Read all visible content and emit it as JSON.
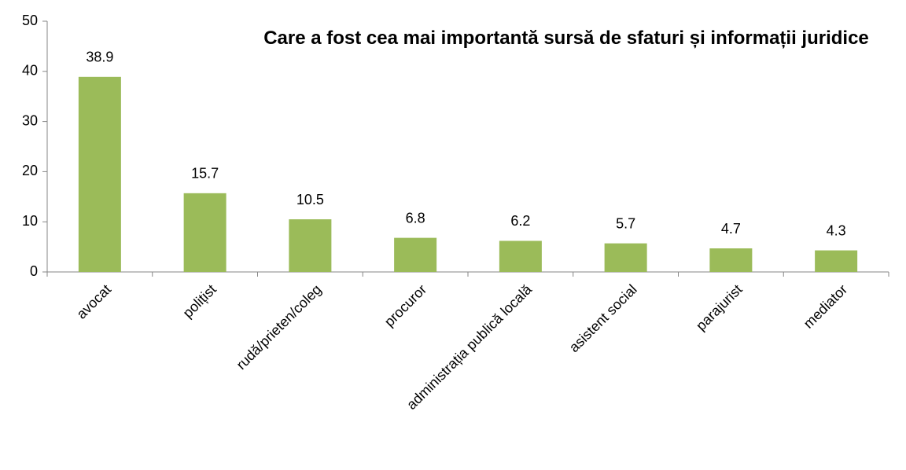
{
  "chart_data": {
    "type": "bar",
    "title": "Care a fost cea mai importantă sursă de sfaturi și informații juridice",
    "categories": [
      "avocat",
      "polițist",
      "rudă/prieten/coleg",
      "procuror",
      "administrația publică locală",
      "asistent social",
      "parajurist",
      "mediator"
    ],
    "values": [
      38.9,
      15.7,
      10.5,
      6.8,
      6.2,
      5.7,
      4.7,
      4.3
    ],
    "color": "#9bbb59",
    "ylim": [
      0,
      50
    ],
    "yticks": [
      0,
      10,
      20,
      30,
      40,
      50
    ],
    "grid": false
  }
}
